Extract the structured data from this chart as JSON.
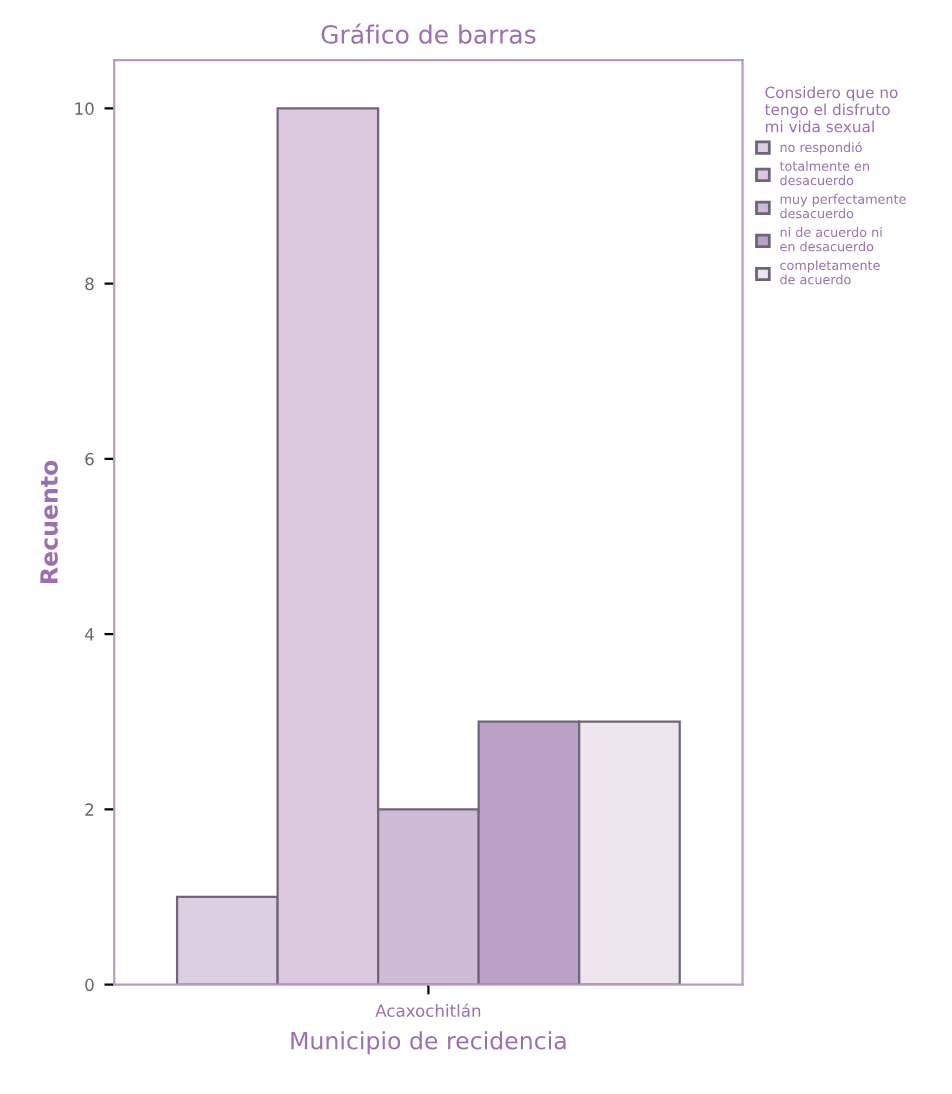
{
  "chart_data": {
    "type": "bar",
    "title": "Gráfico de barras",
    "xlabel": "Municipio de recidencia",
    "ylabel": "Recuento",
    "legend_title": "Considero que no\ntengo el disfruto\nmi vida sexual",
    "categories": [
      "Acaxochitlán"
    ],
    "series": [
      {
        "name": "no respondió",
        "color": "#dccfe2",
        "values": [
          1
        ]
      },
      {
        "name": "totalmente en\ndesacuerdo",
        "color": "#dcc9e0",
        "values": [
          10
        ]
      },
      {
        "name": "muy perfectamente\ndesacuerdo",
        "color": "#cdbbd6",
        "values": [
          2
        ]
      },
      {
        "name": "ni de acuerdo ni\nen desacuerdo",
        "color": "#b9a2c5",
        "values": [
          3
        ]
      },
      {
        "name": "completamente\nde acuerdo",
        "color": "#efe5ef",
        "values": [
          3
        ]
      }
    ],
    "ylim": [
      0,
      10.55
    ],
    "yticks": [
      0,
      2,
      4,
      6,
      8,
      10
    ],
    "grid": false,
    "legend": "right"
  }
}
